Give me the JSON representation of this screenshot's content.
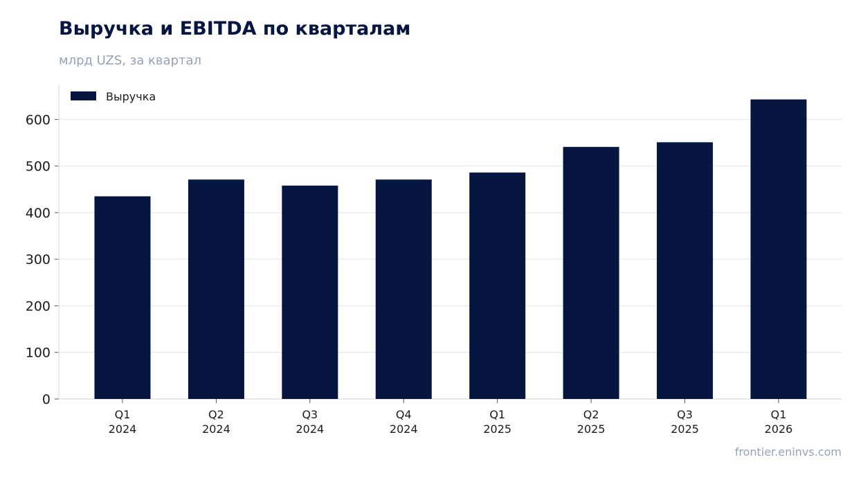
{
  "header": {
    "title": "Выручка и EBITDA по кварталам",
    "subtitle": "млрд UZS, за квартал"
  },
  "footer": {
    "source": "frontier.eninvs.com"
  },
  "colors": {
    "bar": "#071640",
    "grid": "#e3e7ee",
    "axis": "#d9dee6",
    "title": "#071640",
    "muted": "#93a3b8"
  },
  "chart_data": {
    "type": "bar",
    "title": "Выручка и EBITDA по кварталам",
    "subtitle": "млрд UZS, за квартал",
    "categories": [
      [
        "Q1",
        "2024"
      ],
      [
        "Q2",
        "2024"
      ],
      [
        "Q3",
        "2024"
      ],
      [
        "Q4",
        "2024"
      ],
      [
        "Q1",
        "2025"
      ],
      [
        "Q2",
        "2025"
      ],
      [
        "Q3",
        "2025"
      ],
      [
        "Q1",
        "2026"
      ]
    ],
    "series": [
      {
        "name": "Выручка",
        "values": [
          435,
          471,
          458,
          471,
          486,
          541,
          551,
          643
        ]
      }
    ],
    "xlabel": "",
    "ylabel": "",
    "ylim": [
      0,
      675
    ],
    "yticks": [
      0,
      100,
      200,
      300,
      400,
      500,
      600
    ],
    "grid": true,
    "legend": "top-left"
  }
}
